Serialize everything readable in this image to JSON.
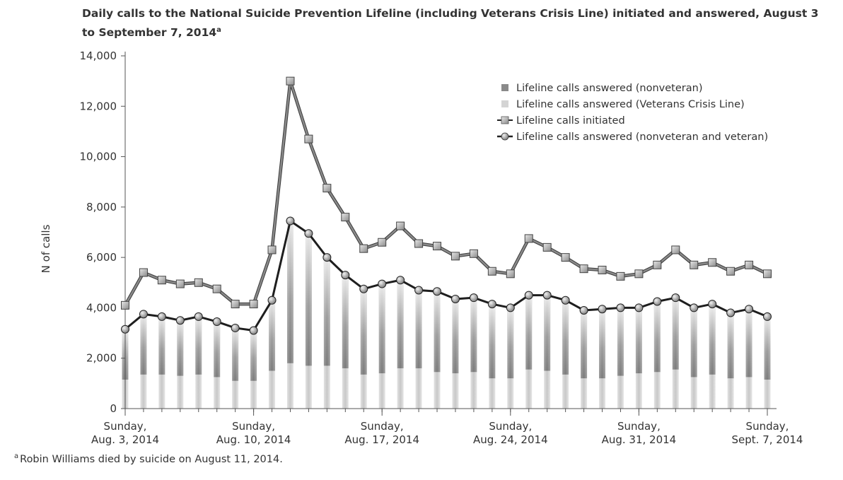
{
  "chart_data": {
    "type": "bar",
    "title_main": "Daily calls to the National Suicide Prevention Lifeline (including Veterans Crisis Line) initiated and answered, August 3 to September 7, 2014",
    "title_sup": "a",
    "ylabel": "N of calls",
    "ylim": [
      0,
      14000
    ],
    "yticks": [
      "0",
      "2,000",
      "4,000",
      "6,000",
      "8,000",
      "10,000",
      "12,000",
      "14,000"
    ],
    "ytick_values": [
      0,
      2000,
      4000,
      6000,
      8000,
      10000,
      12000,
      14000
    ],
    "days": 36,
    "xtick_labels": [
      {
        "day": 0,
        "line1": "Sunday,",
        "line2": "Aug. 3, 2014"
      },
      {
        "day": 7,
        "line1": "Sunday,",
        "line2": "Aug. 10, 2014"
      },
      {
        "day": 14,
        "line1": "Sunday,",
        "line2": "Aug. 17, 2014"
      },
      {
        "day": 21,
        "line1": "Sunday,",
        "line2": "Aug. 24, 2014"
      },
      {
        "day": 28,
        "line1": "Sunday,",
        "line2": "Aug. 31, 2014"
      },
      {
        "day": 35,
        "line1": "Sunday,",
        "line2": "Sept. 7, 2014"
      }
    ],
    "series": [
      {
        "name": "Lifeline calls answered (nonveteran)",
        "kind": "bar",
        "color": "#8a8a8a",
        "values": [
          2000,
          2400,
          2300,
          2200,
          2300,
          2200,
          2100,
          2000,
          2800,
          5700,
          5300,
          4300,
          3700,
          3400,
          3550,
          3500,
          3100,
          3200,
          2950,
          2950,
          2900,
          2800,
          3000,
          3000,
          2950,
          2700,
          2700,
          2700,
          2600,
          2800,
          2900,
          2800,
          2700,
          2600,
          2700,
          2500
        ]
      },
      {
        "name": "Lifeline calls answered (Veterans Crisis Line)",
        "kind": "bar",
        "color": "#d4d4d4",
        "values": [
          1150,
          1350,
          1350,
          1300,
          1350,
          1250,
          1100,
          1100,
          1500,
          1800,
          1700,
          1700,
          1600,
          1350,
          1400,
          1600,
          1600,
          1450,
          1400,
          1450,
          1200,
          1200,
          1550,
          1500,
          1350,
          1200,
          1200,
          1300,
          1400,
          1450,
          1550,
          1250,
          1350,
          1200,
          1250,
          1150
        ]
      },
      {
        "name": "Lifeline calls initiated",
        "kind": "line",
        "marker": "square",
        "color": "#6e6e6e",
        "values": [
          4100,
          5400,
          5100,
          4950,
          5000,
          4750,
          4150,
          4150,
          6300,
          13000,
          10700,
          8750,
          7600,
          6350,
          6600,
          7250,
          6550,
          6450,
          6050,
          6150,
          5450,
          5350,
          6750,
          6400,
          6000,
          5550,
          5500,
          5250,
          5350,
          5700,
          6300,
          5700,
          5800,
          5450,
          5700,
          5350
        ]
      },
      {
        "name": "Lifeline calls answered (nonveteran and veteran)",
        "kind": "line",
        "marker": "circle",
        "color": "#222222",
        "values": [
          3150,
          3750,
          3650,
          3500,
          3650,
          3450,
          3200,
          3100,
          4300,
          7450,
          6950,
          6000,
          5300,
          4750,
          4950,
          5100,
          4700,
          4650,
          4350,
          4400,
          4150,
          4000,
          4500,
          4500,
          4300,
          3900,
          3950,
          4000,
          4000,
          4250,
          4400,
          4000,
          4150,
          3800,
          3950,
          3650
        ]
      }
    ],
    "legend_position": "top-right",
    "grid": false
  },
  "footnote": {
    "marker": "a",
    "text": "Robin Williams died by suicide on August 11, 2014."
  }
}
